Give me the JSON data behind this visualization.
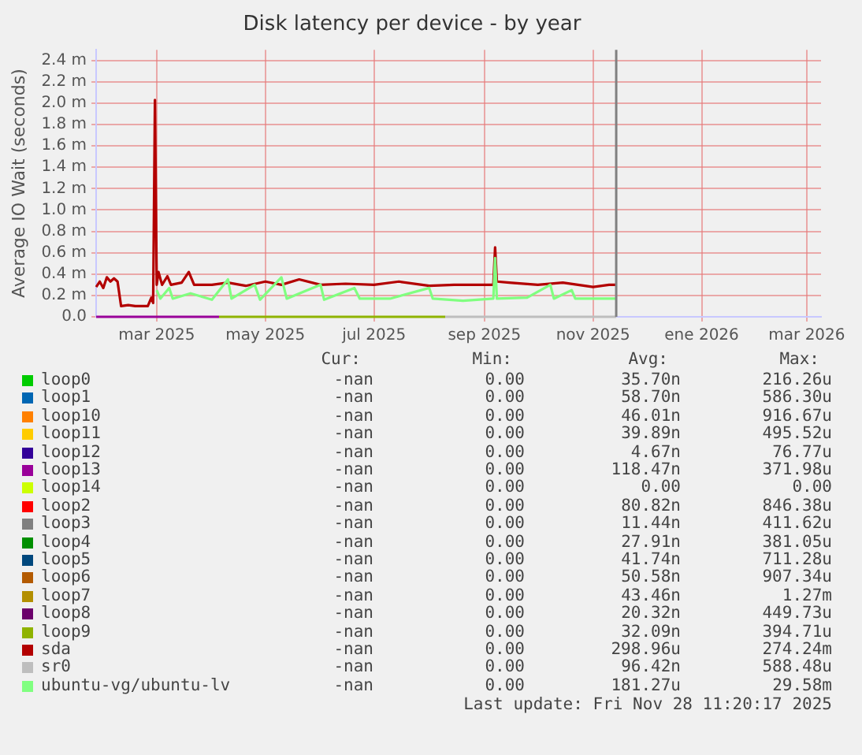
{
  "chart_data": {
    "type": "line",
    "title": "Disk latency per device - by year",
    "ylabel": "Average IO Wait (seconds)",
    "xlim": [
      "2025-01-26",
      "2026-03-09"
    ],
    "xticks": [
      {
        "value": "2025-03-01",
        "label": "mar 2025"
      },
      {
        "value": "2025-05-01",
        "label": "may 2025"
      },
      {
        "value": "2025-07-01",
        "label": "jul 2025"
      },
      {
        "value": "2025-09-01",
        "label": "sep 2025"
      },
      {
        "value": "2025-11-01",
        "label": "nov 2025"
      },
      {
        "value": "2026-01-01",
        "label": "ene 2026"
      },
      {
        "value": "2026-03-01",
        "label": "mar 2026"
      }
    ],
    "ylim": [
      0,
      2.5
    ],
    "yticks": [
      {
        "value": 0,
        "label": "0.0"
      },
      {
        "value": 0.2,
        "label": "0.2 m"
      },
      {
        "value": 0.4,
        "label": "0.4 m"
      },
      {
        "value": 0.6,
        "label": "0.6 m"
      },
      {
        "value": 0.8,
        "label": "0.8 m"
      },
      {
        "value": 1,
        "label": "1.0 m"
      },
      {
        "value": 1.2,
        "label": "1.2 m"
      },
      {
        "value": 1.4,
        "label": "1.4 m"
      },
      {
        "value": 1.6,
        "label": "1.6 m"
      },
      {
        "value": 1.8,
        "label": "1.8 m"
      },
      {
        "value": 2,
        "label": "2.0 m"
      },
      {
        "value": 2.2,
        "label": "2.2 m"
      },
      {
        "value": 2.4,
        "label": "2.4 m"
      }
    ],
    "grid": true,
    "legend": "bottom",
    "marker": "none",
    "ref_lines": [
      {
        "axis": "x",
        "value": "2025-11-14",
        "color": "#808080"
      }
    ],
    "series": [
      {
        "name": "loop0",
        "color": "#00cc00"
      },
      {
        "name": "loop1",
        "color": "#0066b3"
      },
      {
        "name": "loop10",
        "color": "#ff8000"
      },
      {
        "name": "loop11",
        "color": "#ffcc00"
      },
      {
        "name": "loop12",
        "color": "#330099"
      },
      {
        "name": "loop13",
        "color": "#990099",
        "x": [
          "2025-01-26",
          "2025-04-05"
        ],
        "values": [
          0,
          0
        ]
      },
      {
        "name": "loop14",
        "color": "#ccff00"
      },
      {
        "name": "loop2",
        "color": "#ff0000"
      },
      {
        "name": "loop3",
        "color": "#808080"
      },
      {
        "name": "loop4",
        "color": "#008f00"
      },
      {
        "name": "loop5",
        "color": "#00487d"
      },
      {
        "name": "loop6",
        "color": "#b35a00"
      },
      {
        "name": "loop7",
        "color": "#b38f00"
      },
      {
        "name": "loop8",
        "color": "#6b006b"
      },
      {
        "name": "loop9",
        "color": "#8fb300",
        "x": [
          "2025-04-05",
          "2025-08-10"
        ],
        "values": [
          0,
          0
        ]
      },
      {
        "name": "sda",
        "color": "#b30000",
        "x": [
          "2025-01-26",
          "2025-01-28",
          "2025-01-30",
          "2025-02-01",
          "2025-02-03",
          "2025-02-05",
          "2025-02-07",
          "2025-02-09",
          "2025-02-13",
          "2025-02-17",
          "2025-02-21",
          "2025-02-24",
          "2025-02-26",
          "2025-02-27",
          "2025-02-28",
          "2025-03-01",
          "2025-03-02",
          "2025-03-04",
          "2025-03-07",
          "2025-03-09",
          "2025-03-15",
          "2025-03-19",
          "2025-03-22",
          "2025-04-01",
          "2025-04-10",
          "2025-04-20",
          "2025-05-01",
          "2025-05-10",
          "2025-05-20",
          "2025-06-01",
          "2025-06-15",
          "2025-07-01",
          "2025-07-15",
          "2025-08-01",
          "2025-08-15",
          "2025-09-01",
          "2025-09-06",
          "2025-09-07",
          "2025-09-08",
          "2025-09-15",
          "2025-10-01",
          "2025-10-15",
          "2025-11-01",
          "2025-11-10",
          "2025-11-14"
        ],
        "values": [
          0.28,
          0.33,
          0.27,
          0.37,
          0.33,
          0.36,
          0.33,
          0.1,
          0.11,
          0.1,
          0.1,
          0.1,
          0.18,
          0.13,
          2.03,
          0.3,
          0.42,
          0.3,
          0.38,
          0.3,
          0.32,
          0.42,
          0.3,
          0.3,
          0.32,
          0.29,
          0.33,
          0.3,
          0.35,
          0.3,
          0.31,
          0.3,
          0.33,
          0.29,
          0.3,
          0.3,
          0.3,
          0.65,
          0.33,
          0.32,
          0.3,
          0.32,
          0.28,
          0.3,
          0.3
        ]
      },
      {
        "name": "sr0",
        "color": "#bebebe",
        "x": [
          "2025-08-10",
          "2025-11-14"
        ],
        "values": [
          0,
          0
        ]
      },
      {
        "name": "ubuntu-vg/ubuntu-lv",
        "color": "#80ff80",
        "x": [
          "2025-03-01",
          "2025-03-03",
          "2025-03-08",
          "2025-03-10",
          "2025-03-20",
          "2025-04-01",
          "2025-04-10",
          "2025-04-12",
          "2025-04-25",
          "2025-04-28",
          "2025-05-10",
          "2025-05-13",
          "2025-06-01",
          "2025-06-03",
          "2025-06-20",
          "2025-06-23",
          "2025-07-10",
          "2025-08-01",
          "2025-08-03",
          "2025-08-20",
          "2025-09-06",
          "2025-09-07",
          "2025-09-08",
          "2025-09-25",
          "2025-10-08",
          "2025-10-10",
          "2025-10-20",
          "2025-10-22",
          "2025-11-14"
        ],
        "values": [
          0.25,
          0.17,
          0.27,
          0.17,
          0.22,
          0.16,
          0.35,
          0.17,
          0.3,
          0.16,
          0.37,
          0.17,
          0.3,
          0.16,
          0.27,
          0.17,
          0.17,
          0.27,
          0.17,
          0.15,
          0.17,
          0.55,
          0.17,
          0.18,
          0.3,
          0.17,
          0.25,
          0.17,
          0.17
        ]
      }
    ],
    "annotations": [
      "Cur:",
      "Min:",
      "Avg:",
      "Max:",
      "-nan",
      "0.00",
      "35.70n",
      "216.26u",
      "-nan",
      "0.00",
      "58.70n",
      "586.30u",
      "-nan",
      "0.00",
      "46.01n",
      "916.67u",
      "-nan",
      "0.00",
      "39.89n",
      "495.52u",
      "-nan",
      "0.00",
      "4.67n",
      "76.77u",
      "-nan",
      "0.00",
      "118.47n",
      "371.98u",
      "-nan",
      "0.00",
      "0.00",
      "0.00",
      "-nan",
      "0.00",
      "80.82n",
      "846.38u",
      "-nan",
      "0.00",
      "11.44n",
      "411.62u",
      "-nan",
      "0.00",
      "27.91n",
      "381.05u",
      "-nan",
      "0.00",
      "41.74n",
      "711.28u",
      "-nan",
      "0.00",
      "50.58n",
      "907.34u",
      "-nan",
      "0.00",
      "43.46n",
      "1.27m",
      "-nan",
      "0.00",
      "20.32n",
      "449.73u",
      "-nan",
      "0.00",
      "32.09n",
      "394.71u",
      "-nan",
      "0.00",
      "298.96u",
      "274.24m",
      "-nan",
      "0.00",
      "96.42n",
      "588.48u",
      "-nan",
      "0.00",
      "181.27u",
      "29.58m",
      "Last update: Fri Nov 28 11:20:17 2025"
    ]
  }
}
